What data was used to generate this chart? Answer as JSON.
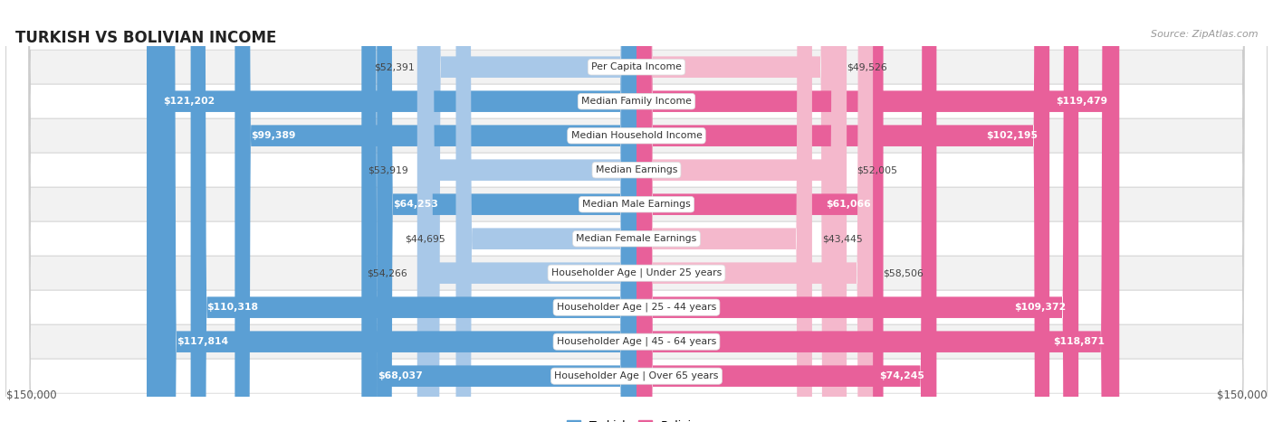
{
  "title": "TURKISH VS BOLIVIAN INCOME",
  "source": "Source: ZipAtlas.com",
  "categories": [
    "Per Capita Income",
    "Median Family Income",
    "Median Household Income",
    "Median Earnings",
    "Median Male Earnings",
    "Median Female Earnings",
    "Householder Age | Under 25 years",
    "Householder Age | 25 - 44 years",
    "Householder Age | 45 - 64 years",
    "Householder Age | Over 65 years"
  ],
  "turkish_values": [
    52391,
    121202,
    99389,
    53919,
    64253,
    44695,
    54266,
    110318,
    117814,
    68037
  ],
  "bolivian_values": [
    49526,
    119479,
    102195,
    52005,
    61066,
    43445,
    58506,
    109372,
    118871,
    74245
  ],
  "turkish_labels": [
    "$52,391",
    "$121,202",
    "$99,389",
    "$53,919",
    "$64,253",
    "$44,695",
    "$54,266",
    "$110,318",
    "$117,814",
    "$68,037"
  ],
  "bolivian_labels": [
    "$49,526",
    "$119,479",
    "$102,195",
    "$52,005",
    "$61,066",
    "$43,445",
    "$58,506",
    "$109,372",
    "$118,871",
    "$74,245"
  ],
  "max_value": 150000,
  "turkish_color_light": "#a8c8e8",
  "turkish_color_dark": "#5b9fd4",
  "bolivian_color_light": "#f4b8cc",
  "bolivian_color_dark": "#e8609a",
  "bg_color": "#ffffff",
  "row_bg_color": "#f0f0f0",
  "legend_turkish": "Turkish",
  "legend_bolivian": "Bolivian",
  "xlabel_left": "$150,000",
  "xlabel_right": "$150,000",
  "inside_threshold": 60000
}
